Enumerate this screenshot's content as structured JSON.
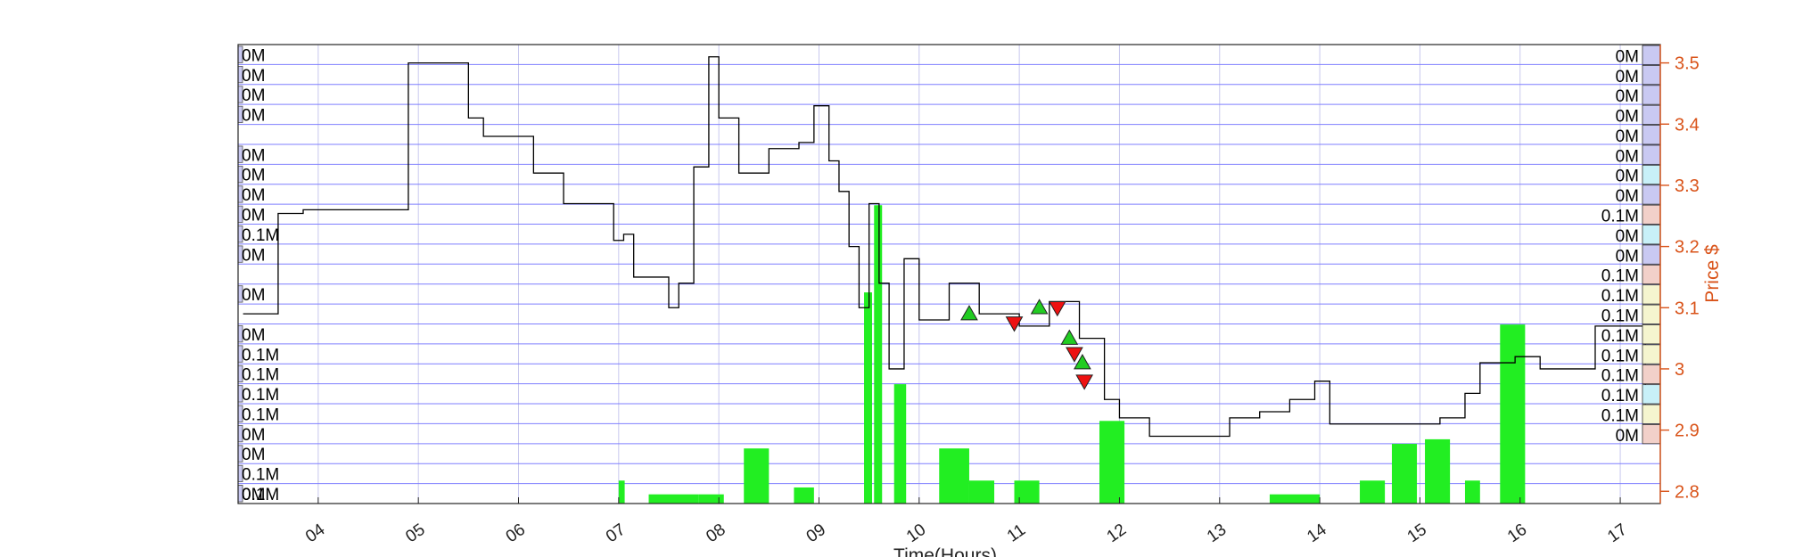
{
  "chart_data": {
    "type": "line",
    "title": "",
    "xlabel": "Time(Hours)",
    "ylabel": "Price $",
    "x_ticks": [
      "04",
      "05",
      "06",
      "07",
      "08",
      "09",
      "10",
      "11",
      "12",
      "13",
      "14",
      "15",
      "16",
      "17"
    ],
    "xlim": [
      3.2,
      17.4
    ],
    "ylim": [
      2.78,
      3.53
    ],
    "y_ticks": [
      2.8,
      2.9,
      3.0,
      3.1,
      3.2,
      3.3,
      3.4,
      3.5
    ],
    "y_tick_labels": [
      "2.8",
      "2.9",
      "3",
      "3.1",
      "3.2",
      "3.3",
      "3.4",
      "3.5"
    ],
    "grid": true,
    "colors": {
      "price_axis": "#d95319",
      "grid_h": "#7f7fff",
      "grid_v": "#c8c8ee",
      "price_line": "#000000",
      "volume_bar": "#22ee22",
      "buy_marker": "#22cc22",
      "sell_marker": "#ee1111",
      "profile_blue": "#c9c9f2",
      "profile_cyan": "#c8f0f8",
      "profile_pink": "#f2d0c9",
      "profile_yellow": "#f5f5cf"
    },
    "price_series": [
      {
        "x": 3.25,
        "y": 3.09
      },
      {
        "x": 3.6,
        "y": 3.254
      },
      {
        "x": 3.85,
        "y": 3.26
      },
      {
        "x": 4.6,
        "y": 3.26
      },
      {
        "x": 4.9,
        "y": 3.5
      },
      {
        "x": 5.3,
        "y": 3.5
      },
      {
        "x": 5.5,
        "y": 3.41
      },
      {
        "x": 5.65,
        "y": 3.38
      },
      {
        "x": 5.9,
        "y": 3.38
      },
      {
        "x": 6.15,
        "y": 3.32
      },
      {
        "x": 6.45,
        "y": 3.27
      },
      {
        "x": 6.7,
        "y": 3.27
      },
      {
        "x": 6.95,
        "y": 3.21
      },
      {
        "x": 7.05,
        "y": 3.22
      },
      {
        "x": 7.15,
        "y": 3.15
      },
      {
        "x": 7.5,
        "y": 3.1
      },
      {
        "x": 7.6,
        "y": 3.14
      },
      {
        "x": 7.75,
        "y": 3.33
      },
      {
        "x": 7.9,
        "y": 3.51
      },
      {
        "x": 8.0,
        "y": 3.41
      },
      {
        "x": 8.2,
        "y": 3.32
      },
      {
        "x": 8.5,
        "y": 3.36
      },
      {
        "x": 8.8,
        "y": 3.37
      },
      {
        "x": 8.95,
        "y": 3.43
      },
      {
        "x": 9.1,
        "y": 3.34
      },
      {
        "x": 9.2,
        "y": 3.29
      },
      {
        "x": 9.3,
        "y": 3.2
      },
      {
        "x": 9.4,
        "y": 3.1
      },
      {
        "x": 9.5,
        "y": 3.27
      },
      {
        "x": 9.6,
        "y": 3.14
      },
      {
        "x": 9.7,
        "y": 3.0
      },
      {
        "x": 9.85,
        "y": 3.18
      },
      {
        "x": 10.0,
        "y": 3.08
      },
      {
        "x": 10.3,
        "y": 3.14
      },
      {
        "x": 10.6,
        "y": 3.09
      },
      {
        "x": 11.0,
        "y": 3.07
      },
      {
        "x": 11.3,
        "y": 3.11
      },
      {
        "x": 11.6,
        "y": 3.05
      },
      {
        "x": 11.85,
        "y": 2.95
      },
      {
        "x": 12.0,
        "y": 2.92
      },
      {
        "x": 12.3,
        "y": 2.89
      },
      {
        "x": 12.8,
        "y": 2.89
      },
      {
        "x": 13.1,
        "y": 2.92
      },
      {
        "x": 13.4,
        "y": 2.93
      },
      {
        "x": 13.7,
        "y": 2.95
      },
      {
        "x": 13.95,
        "y": 2.98
      },
      {
        "x": 14.1,
        "y": 2.91
      },
      {
        "x": 14.8,
        "y": 2.91
      },
      {
        "x": 15.2,
        "y": 2.92
      },
      {
        "x": 15.45,
        "y": 2.96
      },
      {
        "x": 15.6,
        "y": 3.01
      },
      {
        "x": 15.95,
        "y": 3.02
      },
      {
        "x": 16.2,
        "y": 3.0
      },
      {
        "x": 16.5,
        "y": 3.0
      },
      {
        "x": 16.75,
        "y": 3.07
      },
      {
        "x": 17.05,
        "y": 3.07
      },
      {
        "x": 17.25,
        "y": 2.92
      }
    ],
    "volume_bars": [
      {
        "x": 7.0,
        "w": 0.06,
        "v": 0.05
      },
      {
        "x": 7.3,
        "w": 0.5,
        "v": 0.02
      },
      {
        "x": 7.8,
        "w": 0.25,
        "v": 0.02
      },
      {
        "x": 8.25,
        "w": 0.25,
        "v": 0.12
      },
      {
        "x": 8.75,
        "w": 0.2,
        "v": 0.035
      },
      {
        "x": 9.45,
        "w": 0.08,
        "v": 0.46
      },
      {
        "x": 9.55,
        "w": 0.08,
        "v": 0.65
      },
      {
        "x": 9.75,
        "w": 0.12,
        "v": 0.26
      },
      {
        "x": 10.2,
        "w": 0.3,
        "v": 0.12
      },
      {
        "x": 10.5,
        "w": 0.25,
        "v": 0.05
      },
      {
        "x": 10.95,
        "w": 0.25,
        "v": 0.05
      },
      {
        "x": 11.8,
        "w": 0.25,
        "v": 0.18
      },
      {
        "x": 13.5,
        "w": 0.5,
        "v": 0.02
      },
      {
        "x": 14.4,
        "w": 0.25,
        "v": 0.05
      },
      {
        "x": 14.72,
        "w": 0.25,
        "v": 0.13
      },
      {
        "x": 15.05,
        "w": 0.25,
        "v": 0.14
      },
      {
        "x": 15.8,
        "w": 0.25,
        "v": 0.39
      },
      {
        "x": 15.45,
        "w": 0.15,
        "v": 0.05
      }
    ],
    "trade_markers": [
      {
        "type": "buy",
        "x": 10.5,
        "y": 3.09
      },
      {
        "type": "sell",
        "x": 10.95,
        "y": 3.075
      },
      {
        "type": "buy",
        "x": 11.2,
        "y": 3.1
      },
      {
        "type": "sell",
        "x": 11.38,
        "y": 3.1
      },
      {
        "type": "buy",
        "x": 11.5,
        "y": 3.05
      },
      {
        "type": "sell",
        "x": 11.55,
        "y": 3.025
      },
      {
        "type": "buy",
        "x": 11.63,
        "y": 3.01
      },
      {
        "type": "sell",
        "x": 11.65,
        "y": 2.98
      }
    ],
    "volume_profile_left": [
      "0M",
      "0M",
      "0M",
      "0M",
      "0M",
      "0M",
      "0M",
      "0M",
      "0.1M",
      "0M",
      "0M",
      "0M",
      "0.1M",
      "0.1M",
      "0.1M",
      "0.1M",
      "0M",
      "0M",
      "0.1M",
      "0M",
      "0.1M"
    ],
    "volume_profile_right": [
      "0M",
      "0M",
      "0M",
      "0M",
      "0M",
      "0M",
      "0M",
      "0M",
      "0.1M",
      "0M",
      "0M",
      "0.1M",
      "0.1M",
      "0.1M",
      "0.1M",
      "0.1M",
      "0.1M",
      "0.1M",
      "0.1M",
      "0M"
    ]
  }
}
